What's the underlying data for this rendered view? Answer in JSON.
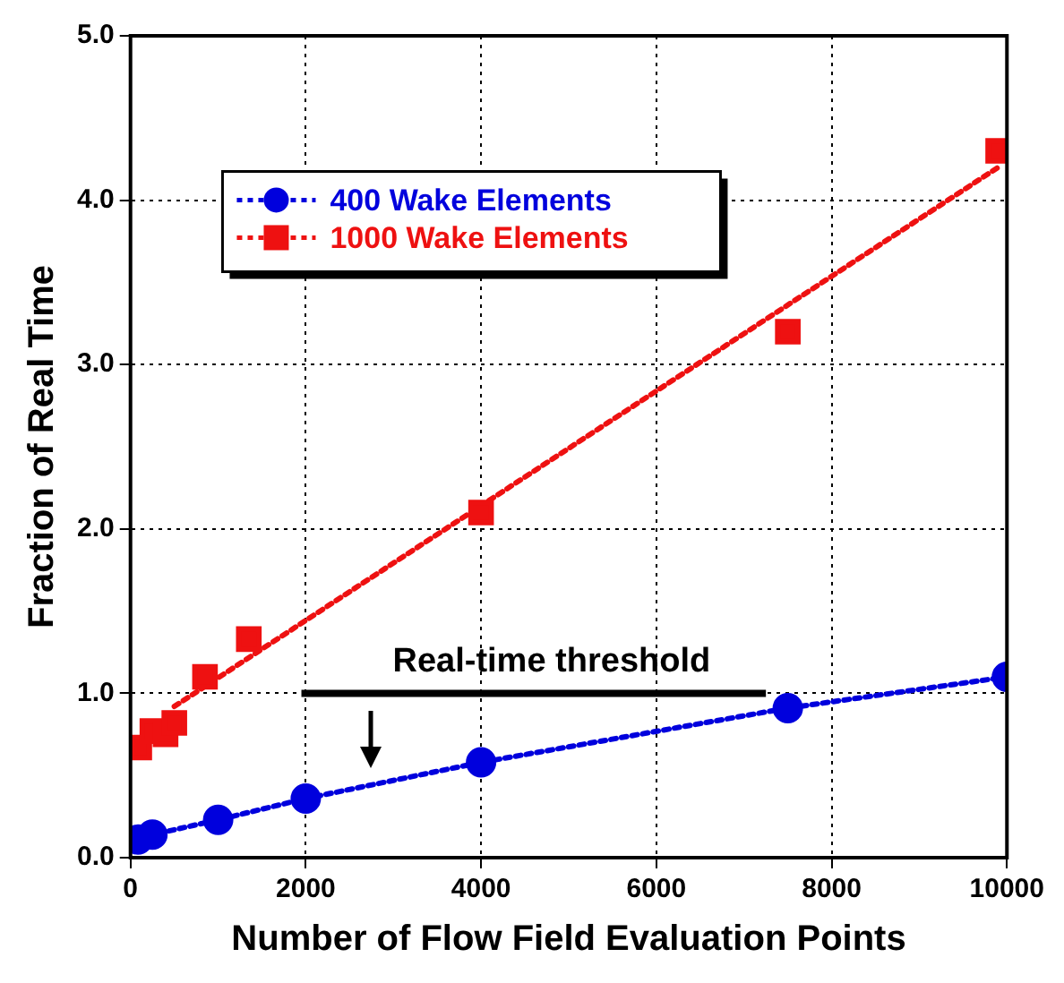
{
  "chart_data": {
    "type": "scatter",
    "xlabel": "Number of Flow Field Evaluation Points",
    "ylabel": "Fraction of Real Time",
    "series": [
      {
        "name": "400 Wake Elements",
        "type": "line",
        "color": "#0000dd",
        "x": [
          85,
          250,
          1000,
          2000,
          4000,
          7500,
          10000
        ],
        "values": [
          0.11,
          0.14,
          0.23,
          0.36,
          0.58,
          0.91,
          1.1
        ]
      },
      {
        "name": "1000 Wake Elements",
        "type": "scatter",
        "marker": "square",
        "color": "#ee1111",
        "x": [
          100,
          250,
          400,
          500,
          850,
          1350,
          4000,
          7500,
          9900
        ],
        "values": [
          0.67,
          0.77,
          0.75,
          0.82,
          1.1,
          1.33,
          2.1,
          3.2,
          4.3
        ]
      },
      {
        "type": "line",
        "marker": "none",
        "color": "#ee1111",
        "x": [
          500,
          9900
        ],
        "values": [
          0.92,
          4.2
        ]
      }
    ],
    "xlim": [
      0,
      10000
    ],
    "xticks": [
      0,
      2000,
      4000,
      6000,
      8000,
      10000
    ],
    "ylim": [
      0,
      5
    ],
    "yticks": [
      {
        "value": 0,
        "label": "0.0"
      },
      {
        "value": 1,
        "label": "1.0"
      },
      {
        "value": 2,
        "label": "2.0"
      },
      {
        "value": 3,
        "label": "3.0"
      },
      {
        "value": 4,
        "label": "4.0"
      },
      {
        "value": 5,
        "label": "5.0"
      }
    ],
    "ref_lines": [
      {
        "axis": "y",
        "value": 1,
        "label": "Real-time threshold",
        "color": "#000000"
      }
    ],
    "grid": true,
    "legend": "top left",
    "marker": "circle",
    "line_style": "dotted"
  }
}
